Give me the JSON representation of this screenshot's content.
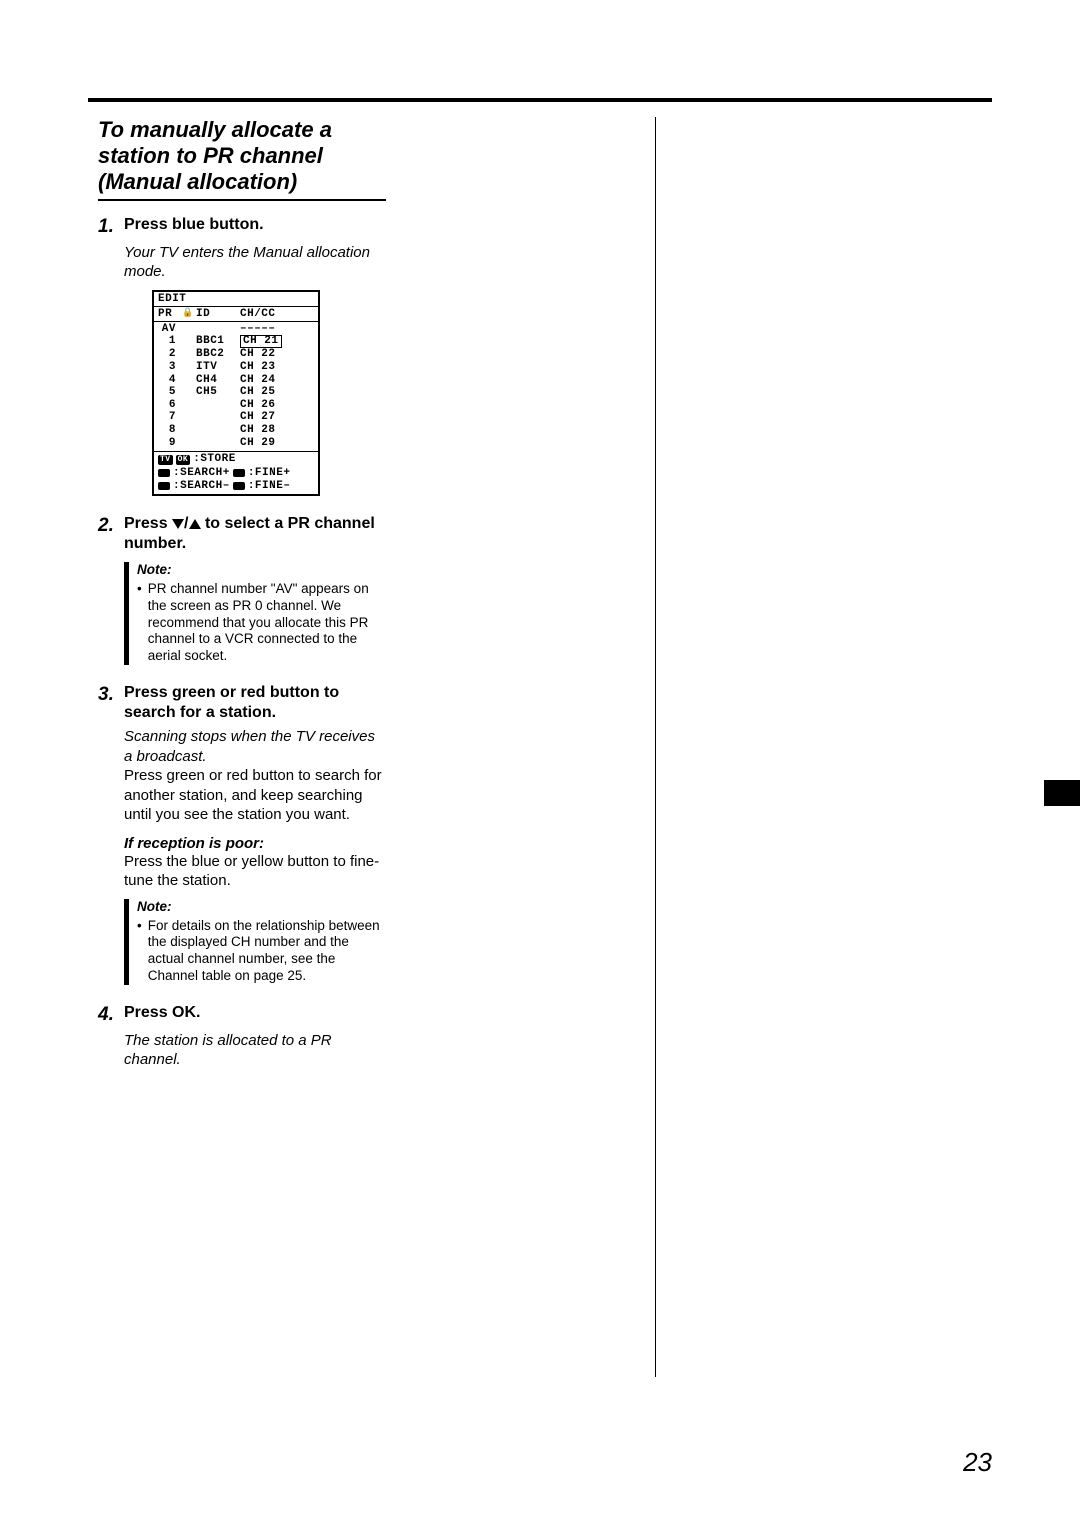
{
  "section_title": "To manually allocate a station to PR channel (Manual allocation)",
  "steps": {
    "s1": {
      "num": "1.",
      "title": "Press blue button.",
      "body_italic": "Your TV enters the Manual allocation mode."
    },
    "s2": {
      "num": "2.",
      "title_pre": "Press ",
      "title_post": " to select a PR channel number."
    },
    "s3": {
      "num": "3.",
      "title": "Press green or red button to search for a station.",
      "body_italic": "Scanning stops when the TV receives a broadcast.",
      "body_plain": "Press green or red button to search for another station, and keep searching until you see the station you want.",
      "sub_heading": "If reception is poor:",
      "sub_body": "Press the blue or yellow button to fine-tune the station."
    },
    "s4": {
      "num": "4.",
      "title": "Press OK.",
      "body_italic": "The station is allocated to a PR channel."
    }
  },
  "notes": {
    "n1": {
      "title": "Note:",
      "text": "PR channel number \"AV\" appears on the screen as PR 0 channel. We recommend that you allocate this PR channel to a VCR connected to the aerial socket."
    },
    "n2": {
      "title": "Note:",
      "text": "For details on the relationship between the displayed CH number and the actual channel number, see the Channel table on page 25."
    }
  },
  "edit_screen": {
    "title": "EDIT",
    "header": {
      "pr": "PR",
      "lock": "🔒",
      "id": "ID",
      "chcc": "CH/CC"
    },
    "rows": [
      {
        "pr": "AV",
        "id": "",
        "ch": "–––––"
      },
      {
        "pr": "1",
        "id": "BBC1",
        "ch": "CH 21",
        "highlight": true
      },
      {
        "pr": "2",
        "id": "BBC2",
        "ch": "CH 22"
      },
      {
        "pr": "3",
        "id": "ITV",
        "ch": "CH 23"
      },
      {
        "pr": "4",
        "id": "CH4",
        "ch": "CH 24"
      },
      {
        "pr": "5",
        "id": "CH5",
        "ch": "CH 25"
      },
      {
        "pr": "6",
        "id": "",
        "ch": "CH 26"
      },
      {
        "pr": "7",
        "id": "",
        "ch": "CH 27"
      },
      {
        "pr": "8",
        "id": "",
        "ch": "CH 28"
      },
      {
        "pr": "9",
        "id": "",
        "ch": "CH 29"
      }
    ],
    "footer": {
      "store": ":STORE",
      "search_plus": ":SEARCH+",
      "fine_plus": ":FINE+",
      "search_minus": ":SEARCH–",
      "fine_minus": ":FINE–",
      "tv": "TV",
      "ok": "OK"
    }
  },
  "page_number": "23"
}
